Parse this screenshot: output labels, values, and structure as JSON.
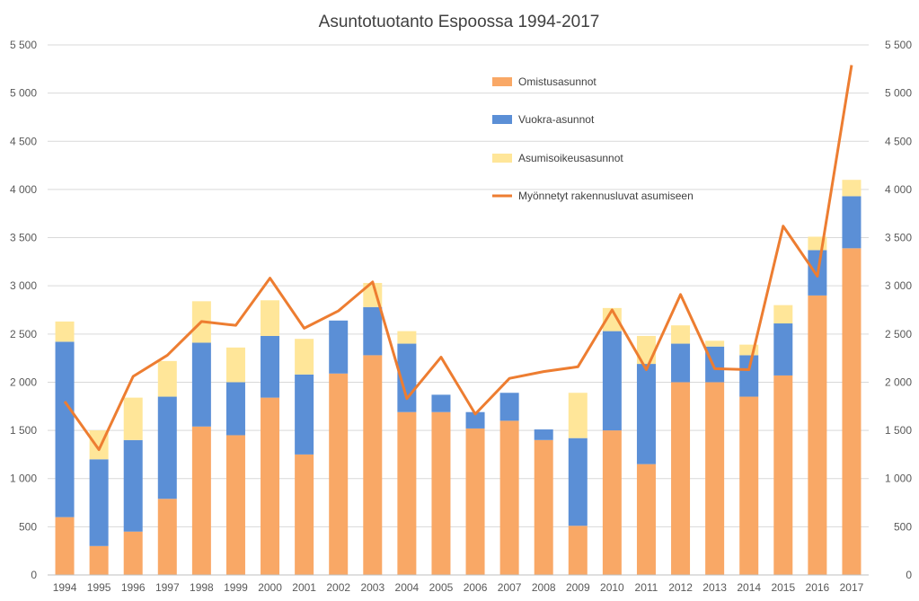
{
  "chart_data": {
    "type": "bar",
    "stacked": true,
    "title": "Asuntotuotanto Espoossa 1994-2017",
    "categories": [
      "1994",
      "1995",
      "1996",
      "1997",
      "1998",
      "1999",
      "2000",
      "2001",
      "2002",
      "2003",
      "2004",
      "2005",
      "2006",
      "2007",
      "2008",
      "2009",
      "2010",
      "2011",
      "2012",
      "2013",
      "2014",
      "2015",
      "2016",
      "2017"
    ],
    "series": [
      {
        "name": "Omistusasunnot",
        "type": "bar",
        "color": "#F9A866",
        "values": [
          600,
          300,
          450,
          790,
          1540,
          1450,
          1840,
          1250,
          2090,
          2280,
          1690,
          1690,
          1520,
          1600,
          1400,
          510,
          1500,
          1150,
          2000,
          2000,
          1850,
          2070,
          2900,
          3390
        ]
      },
      {
        "name": "Vuokra-asunnot",
        "type": "bar",
        "color": "#5B8FD6",
        "values": [
          1820,
          900,
          950,
          1060,
          870,
          550,
          640,
          830,
          550,
          500,
          710,
          180,
          170,
          290,
          110,
          910,
          1030,
          1040,
          400,
          370,
          430,
          540,
          470,
          540
        ]
      },
      {
        "name": "Asumisoikeusasunnot",
        "type": "bar",
        "color": "#FFE699",
        "values": [
          210,
          300,
          440,
          370,
          430,
          360,
          370,
          370,
          0,
          250,
          130,
          0,
          0,
          0,
          0,
          470,
          240,
          290,
          190,
          60,
          110,
          190,
          140,
          170
        ]
      },
      {
        "name": "Myönnetyt rakennusluvat asumiseen",
        "type": "line",
        "color": "#ED7D31",
        "values": [
          1800,
          1300,
          2060,
          2280,
          2630,
          2590,
          3080,
          2560,
          2740,
          3040,
          1830,
          2260,
          1670,
          2040,
          2110,
          2160,
          2750,
          2130,
          2910,
          2140,
          2130,
          3620,
          3100,
          5290
        ]
      }
    ],
    "ylim": [
      0,
      5500
    ],
    "yticks": [
      0,
      500,
      1000,
      1500,
      2000,
      2500,
      3000,
      3500,
      4000,
      4500,
      5000,
      5500
    ],
    "ytick_labels": [
      "0",
      "500",
      "1 000",
      "1 500",
      "2 000",
      "2 500",
      "3 000",
      "3 500",
      "4 000",
      "4 500",
      "5 000",
      "5 500"
    ],
    "grid": true,
    "legend_position": "top-center"
  }
}
